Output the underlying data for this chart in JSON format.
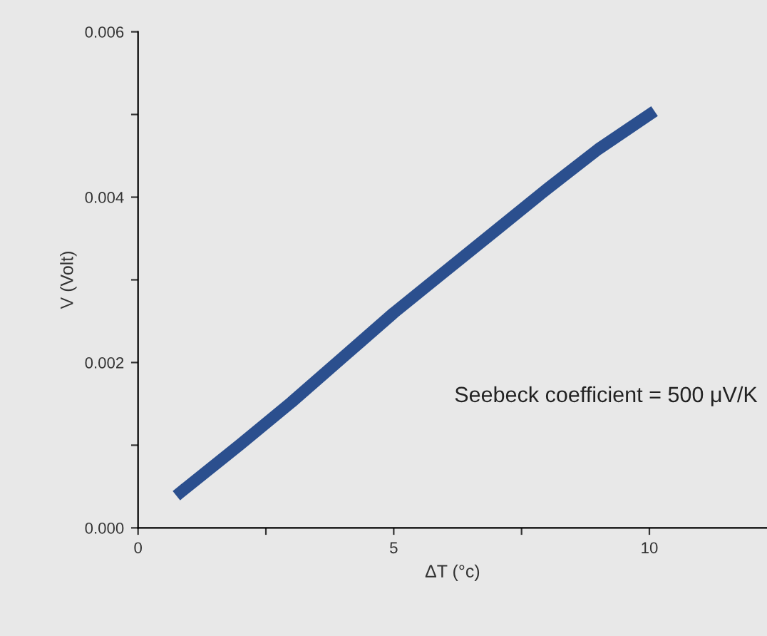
{
  "chart_data": {
    "type": "line",
    "xlabel": "ΔT (°c)",
    "ylabel": "V (Volt)",
    "x": [
      0.75,
      2,
      3,
      4,
      5,
      6,
      7,
      8,
      9,
      10.1
    ],
    "series": [
      {
        "color": "#2b4f8e",
        "values": [
          0.00039,
          0.00101,
          0.00152,
          0.00206,
          0.0026,
          0.0031,
          0.0036,
          0.0041,
          0.00458,
          0.00504
        ]
      }
    ],
    "xlim": [
      0,
      12.3
    ],
    "ylim": [
      0,
      0.006
    ],
    "xticks": [
      0,
      {
        "value": 2.5,
        "label": null
      },
      5,
      {
        "value": 7.5,
        "label": null
      },
      10
    ],
    "yticks": [
      "0.000",
      {
        "value": 0.001,
        "label": null
      },
      {
        "value": 0.002,
        "label": "0.002"
      },
      {
        "value": 0.003,
        "label": null
      },
      {
        "value": 0.004,
        "label": "0.004"
      },
      {
        "value": 0.005,
        "label": null
      },
      {
        "value": 0.006,
        "label": "0.006"
      }
    ],
    "annotations": [
      "Seebeck coefficient = 500 μV/K"
    ],
    "grid": false,
    "line_style": "solid",
    "marker": "none"
  }
}
